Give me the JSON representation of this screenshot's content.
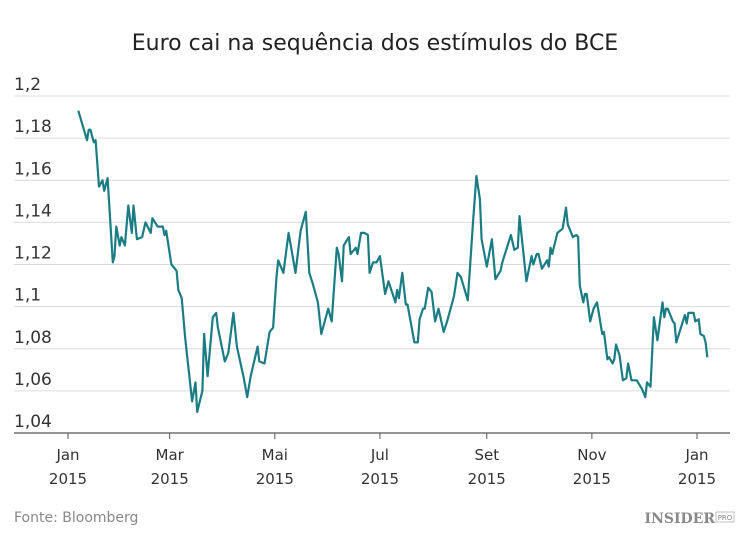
{
  "chart_data": {
    "type": "line",
    "title": "Euro cai na sequência dos estímulos do BCE",
    "xlabel": "",
    "ylabel": "",
    "ylim": [
      1.04,
      1.2
    ],
    "xlim": [
      "2015-01-01",
      "2016-01-01"
    ],
    "grid": true,
    "y_ticks": [
      "1,2",
      "1,18",
      "1,16",
      "1,14",
      "1,12",
      "1,1",
      "1,08",
      "1,06",
      "1,04"
    ],
    "y_tick_values": [
      1.2,
      1.18,
      1.16,
      1.14,
      1.12,
      1.1,
      1.08,
      1.06,
      1.04
    ],
    "x_ticks": [
      {
        "date": "2015-01-01",
        "month": "Jan",
        "year": "2015"
      },
      {
        "date": "2015-03-01",
        "month": "Mar",
        "year": "2015"
      },
      {
        "date": "2015-05-01",
        "month": "Mai",
        "year": "2015"
      },
      {
        "date": "2015-07-01",
        "month": "Jul",
        "year": "2015"
      },
      {
        "date": "2015-09-01",
        "month": "Set",
        "year": "2015"
      },
      {
        "date": "2015-11-01",
        "month": "Nov",
        "year": "2015"
      },
      {
        "date": "2016-01-01",
        "month": "Jan",
        "year": "2015"
      }
    ],
    "line_color": "#1b7d84",
    "series": [
      {
        "points": [
          [
            "2015-01-07",
            1.193
          ],
          [
            "2015-01-12",
            1.179
          ],
          [
            "2015-01-13",
            1.184
          ],
          [
            "2015-01-14",
            1.184
          ],
          [
            "2015-01-16",
            1.178
          ],
          [
            "2015-01-17",
            1.179
          ],
          [
            "2015-01-19",
            1.157
          ],
          [
            "2015-01-21",
            1.16
          ],
          [
            "2015-01-22",
            1.155
          ],
          [
            "2015-01-24",
            1.161
          ],
          [
            "2015-01-27",
            1.121
          ],
          [
            "2015-01-28",
            1.124
          ],
          [
            "2015-01-29",
            1.138
          ],
          [
            "2015-01-31",
            1.129
          ],
          [
            "2015-02-01",
            1.133
          ],
          [
            "2015-02-03",
            1.129
          ],
          [
            "2015-02-05",
            1.148
          ],
          [
            "2015-02-07",
            1.135
          ],
          [
            "2015-02-08",
            1.148
          ],
          [
            "2015-02-10",
            1.132
          ],
          [
            "2015-02-13",
            1.133
          ],
          [
            "2015-02-15",
            1.14
          ],
          [
            "2015-02-18",
            1.135
          ],
          [
            "2015-02-19",
            1.142
          ],
          [
            "2015-02-22",
            1.138
          ],
          [
            "2015-02-25",
            1.138
          ],
          [
            "2015-02-26",
            1.134
          ],
          [
            "2015-02-27",
            1.136
          ],
          [
            "2015-03-02",
            1.12
          ],
          [
            "2015-03-05",
            1.117
          ],
          [
            "2015-03-06",
            1.108
          ],
          [
            "2015-03-08",
            1.104
          ],
          [
            "2015-03-10",
            1.085
          ],
          [
            "2015-03-14",
            1.055
          ],
          [
            "2015-03-16",
            1.064
          ],
          [
            "2015-03-17",
            1.05
          ],
          [
            "2015-03-20",
            1.06
          ],
          [
            "2015-03-21",
            1.087
          ],
          [
            "2015-03-23",
            1.067
          ],
          [
            "2015-03-26",
            1.095
          ],
          [
            "2015-03-28",
            1.097
          ],
          [
            "2015-03-29",
            1.09
          ],
          [
            "2015-04-02",
            1.074
          ],
          [
            "2015-04-04",
            1.078
          ],
          [
            "2015-04-07",
            1.097
          ],
          [
            "2015-04-09",
            1.081
          ],
          [
            "2015-04-13",
            1.066
          ],
          [
            "2015-04-15",
            1.057
          ],
          [
            "2015-04-17",
            1.067
          ],
          [
            "2015-04-21",
            1.081
          ],
          [
            "2015-04-22",
            1.074
          ],
          [
            "2015-04-25",
            1.073
          ],
          [
            "2015-04-28",
            1.088
          ],
          [
            "2015-04-30",
            1.09
          ],
          [
            "2015-05-02",
            1.114
          ],
          [
            "2015-05-03",
            1.122
          ],
          [
            "2015-05-06",
            1.116
          ],
          [
            "2015-05-09",
            1.135
          ],
          [
            "2015-05-13",
            1.116
          ],
          [
            "2015-05-16",
            1.136
          ],
          [
            "2015-05-19",
            1.145
          ],
          [
            "2015-05-21",
            1.116
          ],
          [
            "2015-05-23",
            1.111
          ],
          [
            "2015-05-26",
            1.102
          ],
          [
            "2015-05-28",
            1.087
          ],
          [
            "2015-06-01",
            1.099
          ],
          [
            "2015-06-03",
            1.093
          ],
          [
            "2015-06-06",
            1.128
          ],
          [
            "2015-06-07",
            1.125
          ],
          [
            "2015-06-09",
            1.112
          ],
          [
            "2015-06-10",
            1.129
          ],
          [
            "2015-06-13",
            1.133
          ],
          [
            "2015-06-14",
            1.125
          ],
          [
            "2015-06-17",
            1.128
          ],
          [
            "2015-06-18",
            1.125
          ],
          [
            "2015-06-20",
            1.135
          ],
          [
            "2015-06-22",
            1.135
          ],
          [
            "2015-06-24",
            1.134
          ],
          [
            "2015-06-25",
            1.116
          ],
          [
            "2015-06-27",
            1.121
          ],
          [
            "2015-06-29",
            1.121
          ],
          [
            "2015-07-01",
            1.124
          ],
          [
            "2015-07-04",
            1.106
          ],
          [
            "2015-07-06",
            1.112
          ],
          [
            "2015-07-10",
            1.102
          ],
          [
            "2015-07-11",
            1.108
          ],
          [
            "2015-07-12",
            1.104
          ],
          [
            "2015-07-14",
            1.116
          ],
          [
            "2015-07-16",
            1.101
          ],
          [
            "2015-07-17",
            1.101
          ],
          [
            "2015-07-21",
            1.083
          ],
          [
            "2015-07-23",
            1.083
          ],
          [
            "2015-07-24",
            1.094
          ],
          [
            "2015-07-26",
            1.099
          ],
          [
            "2015-07-27",
            1.099
          ],
          [
            "2015-07-29",
            1.109
          ],
          [
            "2015-07-31",
            1.107
          ],
          [
            "2015-08-02",
            1.093
          ],
          [
            "2015-08-04",
            1.099
          ],
          [
            "2015-08-07",
            1.088
          ],
          [
            "2015-08-09",
            1.093
          ],
          [
            "2015-08-12",
            1.102
          ],
          [
            "2015-08-13",
            1.105
          ],
          [
            "2015-08-15",
            1.116
          ],
          [
            "2015-08-17",
            1.114
          ],
          [
            "2015-08-21",
            1.103
          ],
          [
            "2015-08-24",
            1.14
          ],
          [
            "2015-08-26",
            1.162
          ],
          [
            "2015-08-28",
            1.151
          ],
          [
            "2015-08-29",
            1.132
          ],
          [
            "2015-09-01",
            1.119
          ],
          [
            "2015-09-04",
            1.132
          ],
          [
            "2015-09-06",
            1.113
          ],
          [
            "2015-09-09",
            1.117
          ],
          [
            "2015-09-10",
            1.121
          ],
          [
            "2015-09-15",
            1.134
          ],
          [
            "2015-09-17",
            1.127
          ],
          [
            "2015-09-19",
            1.128
          ],
          [
            "2015-09-20",
            1.143
          ],
          [
            "2015-09-24",
            1.112
          ],
          [
            "2015-09-27",
            1.124
          ],
          [
            "2015-09-28",
            1.12
          ],
          [
            "2015-09-30",
            1.125
          ],
          [
            "2015-10-01",
            1.125
          ],
          [
            "2015-10-03",
            1.118
          ],
          [
            "2015-10-06",
            1.122
          ],
          [
            "2015-10-07",
            1.119
          ],
          [
            "2015-10-08",
            1.128
          ],
          [
            "2015-10-09",
            1.125
          ],
          [
            "2015-10-12",
            1.135
          ],
          [
            "2015-10-15",
            1.137
          ],
          [
            "2015-10-17",
            1.147
          ],
          [
            "2015-10-18",
            1.139
          ],
          [
            "2015-10-21",
            1.133
          ],
          [
            "2015-10-23",
            1.134
          ],
          [
            "2015-10-24",
            1.133
          ],
          [
            "2015-10-25",
            1.11
          ],
          [
            "2015-10-27",
            1.102
          ],
          [
            "2015-10-28",
            1.106
          ],
          [
            "2015-10-29",
            1.106
          ],
          [
            "2015-10-31",
            1.093
          ],
          [
            "2015-11-02",
            1.099
          ],
          [
            "2015-11-04",
            1.102
          ],
          [
            "2015-11-05",
            1.097
          ],
          [
            "2015-11-07",
            1.087
          ],
          [
            "2015-11-08",
            1.088
          ],
          [
            "2015-11-10",
            1.075
          ],
          [
            "2015-11-11",
            1.076
          ],
          [
            "2015-11-13",
            1.073
          ],
          [
            "2015-11-14",
            1.075
          ],
          [
            "2015-11-15",
            1.082
          ],
          [
            "2015-11-17",
            1.077
          ],
          [
            "2015-11-19",
            1.065
          ],
          [
            "2015-11-21",
            1.066
          ],
          [
            "2015-11-22",
            1.073
          ],
          [
            "2015-11-24",
            1.065
          ],
          [
            "2015-11-27",
            1.065
          ],
          [
            "2015-11-30",
            1.061
          ],
          [
            "2015-12-02",
            1.057
          ],
          [
            "2015-12-03",
            1.064
          ],
          [
            "2015-12-05",
            1.062
          ],
          [
            "2015-12-07",
            1.095
          ],
          [
            "2015-12-09",
            1.084
          ],
          [
            "2015-12-10",
            1.09
          ],
          [
            "2015-12-12",
            1.102
          ],
          [
            "2015-12-13",
            1.095
          ],
          [
            "2015-12-14",
            1.099
          ],
          [
            "2015-12-15",
            1.099
          ],
          [
            "2015-12-18",
            1.093
          ],
          [
            "2015-12-19",
            1.092
          ],
          [
            "2015-12-20",
            1.083
          ],
          [
            "2015-12-25",
            1.096
          ],
          [
            "2015-12-26",
            1.092
          ],
          [
            "2015-12-27",
            1.097
          ],
          [
            "2015-12-30",
            1.097
          ],
          [
            "2015-12-31",
            1.093
          ],
          [
            "2016-01-02",
            1.094
          ],
          [
            "2016-01-03",
            1.087
          ],
          [
            "2016-01-05",
            1.086
          ],
          [
            "2016-01-06",
            1.083
          ],
          [
            "2016-01-07",
            1.076
          ]
        ]
      }
    ]
  },
  "footer": {
    "source": "Fonte: Bloomberg",
    "logo": "INSIDER",
    "logo_suffix": "PRO"
  }
}
